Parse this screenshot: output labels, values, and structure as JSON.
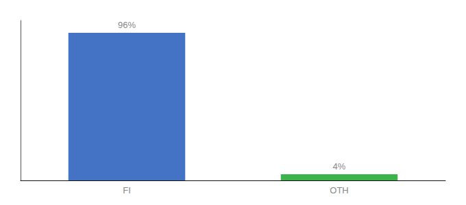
{
  "chart_data": {
    "type": "bar",
    "categories": [
      "FI",
      "OTH"
    ],
    "values": [
      96,
      4
    ],
    "value_labels": [
      "96%",
      "4%"
    ],
    "colors": [
      "#4472c4",
      "#3cb34a"
    ],
    "ylim": [
      0,
      104
    ],
    "grid": false,
    "tick_labels": "x"
  }
}
